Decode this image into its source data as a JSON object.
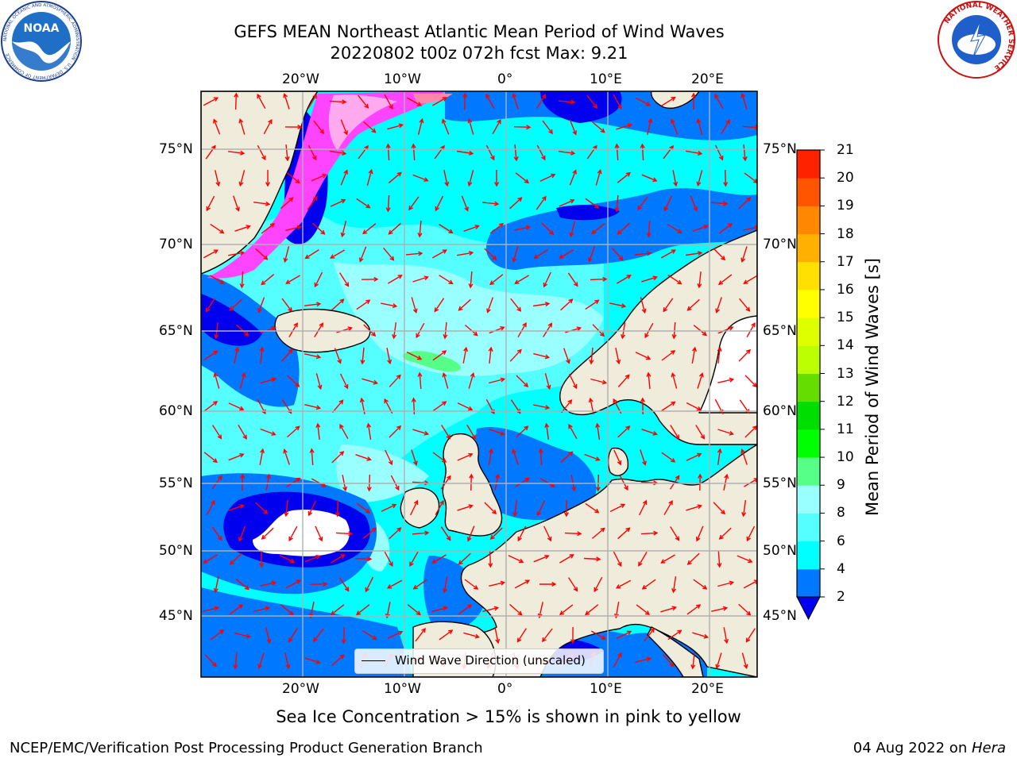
{
  "title": {
    "line1": "GEFS MEAN Northeast Atlantic Mean Period of Wind Waves",
    "line2": "20220802 t00z 072h fcst   Max: 9.21"
  },
  "map": {
    "lon_labels": [
      "20°W",
      "10°W",
      "0°",
      "10°E",
      "20°E"
    ],
    "lat_labels": [
      "75°N",
      "70°N",
      "65°N",
      "60°N",
      "55°N",
      "50°N",
      "45°N"
    ],
    "legend_label": "Wind Wave Direction (unscaled)",
    "arrow_color": "#ff0000",
    "land_color": "#efecdc",
    "ocean_shades": [
      "#0000ee",
      "#0078ff",
      "#00ffff",
      "#55ffff",
      "#99ffff",
      "#55ff88"
    ],
    "ice_shades": [
      "#ff44ff",
      "#ffaaee",
      "#ff88aa"
    ]
  },
  "colorbar": {
    "label": "Mean Period of Wind Waves [s]",
    "ticks": [
      "2",
      "4",
      "6",
      "8",
      "9",
      "10",
      "11",
      "12",
      "13",
      "14",
      "15",
      "16",
      "17",
      "18",
      "19",
      "20",
      "21"
    ],
    "colors": [
      "#0078ff",
      "#00ffff",
      "#55ffff",
      "#99ffff",
      "#55ff88",
      "#00ff00",
      "#00dd00",
      "#66dd00",
      "#bbff00",
      "#ddff00",
      "#ffff00",
      "#ffe000",
      "#ffb000",
      "#ff8800",
      "#ff5500",
      "#ff2200"
    ],
    "extend_color": "#0000ee"
  },
  "note": "Sea Ice Concentration > 15% is shown in pink to yellow",
  "footer": {
    "left": "NCEP/EMC/Verification Post Processing Product Generation Branch",
    "date": "04 Aug 2022 on ",
    "machine": "Hera"
  },
  "logos": {
    "noaa_text": "NOAA",
    "noaa_ring_text": "NATIONAL OCEANIC AND ATMOSPHERIC ADMINISTRATION · U.S. DEPARTMENT OF COMMERCE",
    "nws_ring_text": "NATIONAL WEATHER SERVICE"
  }
}
